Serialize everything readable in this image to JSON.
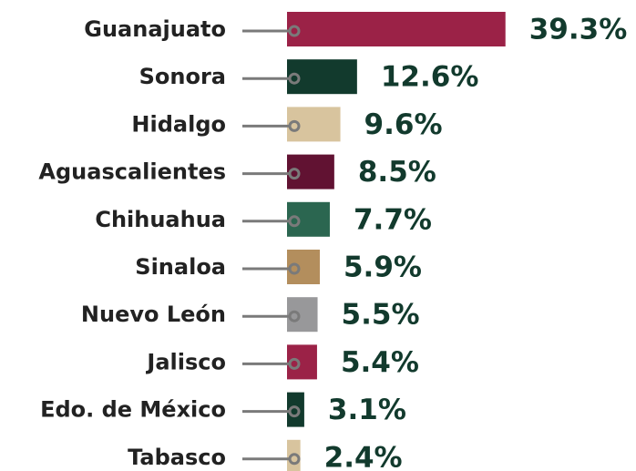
{
  "chart_data": {
    "type": "bar",
    "orientation": "horizontal",
    "categories": [
      "Guanajuato",
      "Sonora",
      "Hidalgo",
      "Aguascalientes",
      "Chihuahua",
      "Sinaloa",
      "Nuevo León",
      "Jalisco",
      "Edo. de México",
      "Tabasco"
    ],
    "values": [
      39.3,
      12.6,
      9.6,
      8.5,
      7.7,
      5.9,
      5.5,
      5.4,
      3.1,
      2.4
    ],
    "value_labels": [
      "39.3%",
      "12.6%",
      "9.6%",
      "8.5%",
      "7.7%",
      "5.9%",
      "5.5%",
      "5.4%",
      "3.1%",
      "2.4%"
    ],
    "colors": [
      "#9b2247",
      "#123a2d",
      "#d8c49e",
      "#611232",
      "#2b6650",
      "#b38e5d",
      "#98989a",
      "#9b2247",
      "#123a2d",
      "#d8c49e"
    ]
  }
}
